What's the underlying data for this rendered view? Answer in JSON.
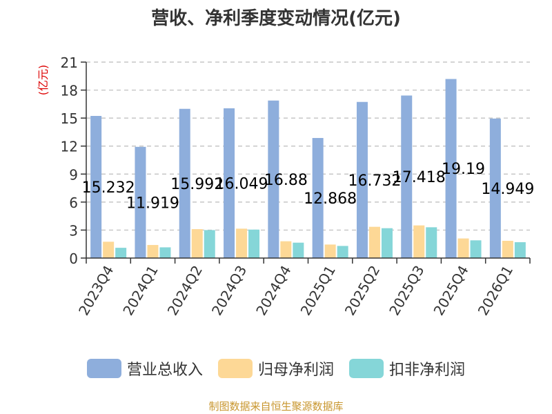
{
  "chart_data": {
    "type": "bar",
    "title": "营收、净利季度变动情况(亿元)",
    "ylabel": "(亿元)",
    "xlabel": "",
    "ylim": [
      0,
      21
    ],
    "yticks": [
      0,
      3,
      6,
      9,
      12,
      15,
      18,
      21
    ],
    "grid": true,
    "legend_position": "bottom",
    "categories": [
      "2023Q4",
      "2024Q1",
      "2024Q2",
      "2024Q3",
      "2024Q4",
      "2025Q1",
      "2025Q2",
      "2025Q3",
      "2025Q4",
      "2026Q1"
    ],
    "series": [
      {
        "name": "营业总收入",
        "color": "#8eaedc",
        "values": [
          15.232,
          11.919,
          15.992,
          16.049,
          16.88,
          12.868,
          16.732,
          17.418,
          19.19,
          14.949
        ]
      },
      {
        "name": "归母净利润",
        "color": "#fdd896",
        "values": [
          1.75,
          1.4,
          3.1,
          3.15,
          1.8,
          1.45,
          3.35,
          3.5,
          2.1,
          1.85
        ]
      },
      {
        "name": "扣非净利润",
        "color": "#85d6d8",
        "values": [
          1.1,
          1.15,
          3.0,
          3.05,
          1.65,
          1.3,
          3.2,
          3.3,
          1.9,
          1.7
        ]
      }
    ],
    "data_labels": [
      "15.232",
      "11.919",
      "15.992",
      "16.049",
      "16.88",
      "12.868",
      "16.732",
      "17.418",
      "19.19",
      "14.949"
    ]
  },
  "source_note": "制图数据来自恒生聚源数据库",
  "axis_color": "#333333",
  "grid_color": "#bbbbbb",
  "ylabel_color": "#dd0000"
}
